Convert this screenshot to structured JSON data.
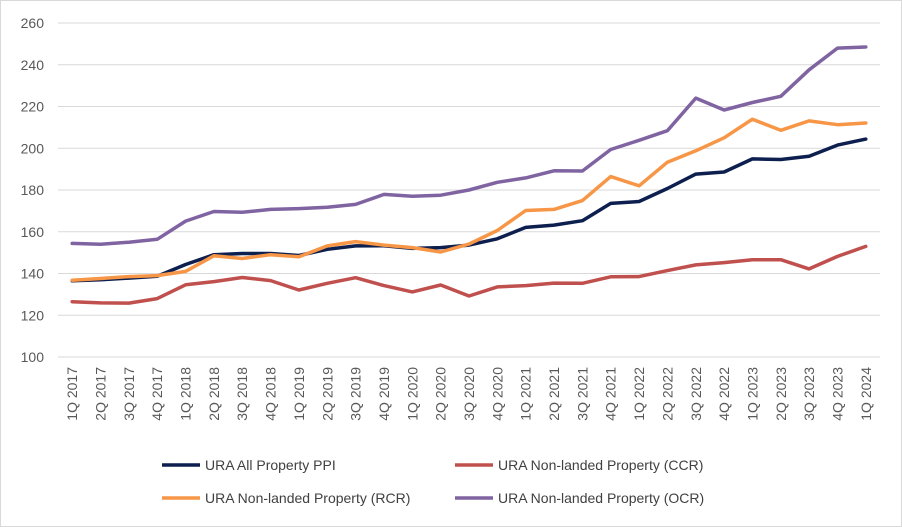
{
  "chart_data": {
    "type": "line",
    "title": "",
    "xlabel": "",
    "ylabel": "",
    "ylim": [
      100,
      260
    ],
    "y_ticks": [
      "100",
      "120",
      "140",
      "160",
      "180",
      "200",
      "220",
      "240",
      "260"
    ],
    "grid": "horizontal",
    "legend_position": "bottom",
    "categories": [
      "1Q 2017",
      "2Q 2017",
      "3Q 2017",
      "4Q 2017",
      "1Q 2018",
      "2Q 2018",
      "3Q 2018",
      "4Q 2018",
      "1Q 2019",
      "2Q 2019",
      "3Q 2019",
      "4Q 2019",
      "1Q 2020",
      "2Q 2020",
      "3Q 2020",
      "4Q 2020",
      "1Q 2021",
      "2Q 2021",
      "3Q 2021",
      "4Q 2021",
      "1Q 2022",
      "2Q 2022",
      "3Q 2022",
      "4Q 2022",
      "1Q 2023",
      "2Q 2023",
      "3Q 2023",
      "4Q 2023",
      "1Q 2024"
    ],
    "series": [
      {
        "name": "URA All Property PPI",
        "color": "#0d1f4f",
        "values": [
          136.5,
          137.0,
          137.8,
          138.7,
          144.3,
          149.0,
          149.6,
          149.6,
          148.6,
          151.6,
          153.2,
          153.3,
          152.0,
          152.4,
          153.6,
          156.6,
          162.1,
          163.2,
          165.3,
          173.6,
          174.5,
          180.7,
          187.6,
          188.6,
          194.9,
          194.6,
          196.2,
          201.5,
          204.4
        ]
      },
      {
        "name": "URA Non-landed Property (CCR)",
        "color": "#c0504d",
        "values": [
          126.5,
          125.9,
          125.8,
          128.0,
          134.6,
          136.1,
          138.1,
          136.6,
          132.1,
          135.3,
          138.0,
          134.2,
          131.2,
          134.5,
          129.2,
          133.6,
          134.2,
          135.4,
          135.3,
          138.4,
          138.5,
          141.4,
          144.1,
          145.2,
          146.6,
          146.6,
          142.2,
          148.2,
          153.0
        ]
      },
      {
        "name": "URA Non-landed Property (RCR)",
        "color": "#f79646",
        "values": [
          136.8,
          137.6,
          138.5,
          139.0,
          141.0,
          148.5,
          147.2,
          149.0,
          148.0,
          153.2,
          155.3,
          153.6,
          152.4,
          150.3,
          154.1,
          160.6,
          170.2,
          170.7,
          174.9,
          186.4,
          182.0,
          193.3,
          198.8,
          205.0,
          213.9,
          208.6,
          213.1,
          211.3,
          212.1
        ]
      },
      {
        "name": "URA Non-landed Property (OCR)",
        "color": "#8064a2",
        "values": [
          154.4,
          154.0,
          155.0,
          156.4,
          165.1,
          169.7,
          169.3,
          170.7,
          171.1,
          171.7,
          173.1,
          177.9,
          177.0,
          177.5,
          180.0,
          183.7,
          185.8,
          189.2,
          189.1,
          199.4,
          203.8,
          208.4,
          224.0,
          218.3,
          221.9,
          224.9,
          237.6,
          248.0,
          248.5
        ]
      }
    ]
  }
}
